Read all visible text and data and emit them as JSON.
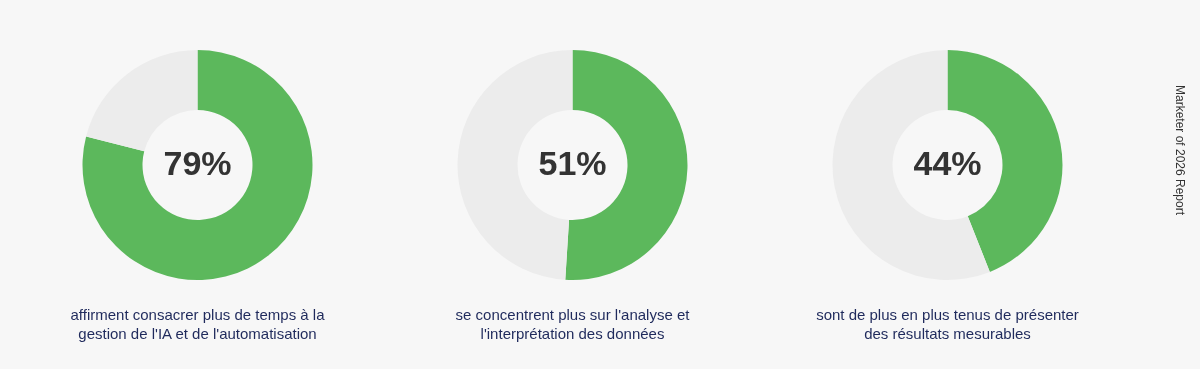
{
  "chart_data": [
    {
      "type": "donut",
      "categories": [
        null,
        null
      ],
      "values": [
        79,
        21
      ],
      "colors": [
        "#5cb85c",
        "#ececec"
      ],
      "value_labels": [
        "79%",
        null
      ],
      "annotations": [
        "affirment consacrer plus de temps à la gestion de l'IA et de l'automatisation"
      ]
    },
    {
      "type": "donut",
      "categories": [
        null,
        null
      ],
      "values": [
        51,
        49
      ],
      "colors": [
        "#5cb85c",
        "#ececec"
      ],
      "value_labels": [
        "51%",
        null
      ],
      "annotations": [
        "se concentrent plus sur l'analyse et l'interprétation des données"
      ]
    },
    {
      "type": "donut",
      "categories": [
        null,
        null
      ],
      "values": [
        44,
        56
      ],
      "colors": [
        "#5cb85c",
        "#ececec"
      ],
      "value_labels": [
        "44%",
        null
      ],
      "annotations": [
        "sont de plus en plus tenus de présenter des résultats mesurables",
        "Marketer of 2026 Report"
      ]
    }
  ]
}
